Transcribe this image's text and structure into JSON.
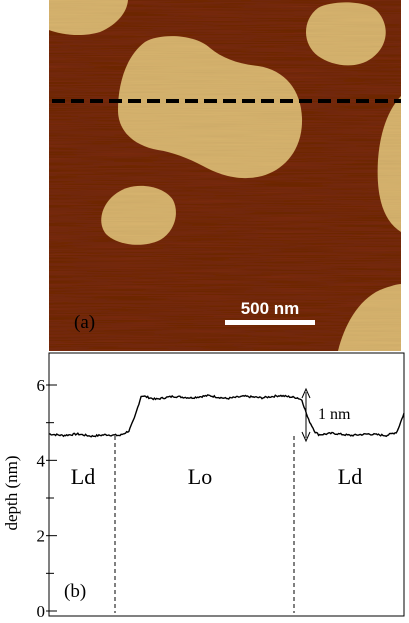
{
  "panel_a": {
    "label": "(a)",
    "scale_bar_label": "500 nm",
    "colors": {
      "background": "#7e2d07",
      "domain": "#d9b56f",
      "dashed_line": "#000000",
      "scale_bar": "#ffffff"
    }
  },
  "panel_b": {
    "label": "(b)",
    "step_annotation": "1 nm",
    "phase_labels": [
      "Ld",
      "Lo",
      "Ld"
    ]
  },
  "chart_data": {
    "type": "line",
    "ylabel": "depth (nm)",
    "ylim": [
      0,
      7
    ],
    "yticks": [
      0,
      2,
      4,
      6
    ],
    "y_minor_ticks": [
      1,
      3,
      5
    ],
    "grid": false,
    "series": [
      {
        "x": [
          0.0,
          0.04,
          0.08,
          0.12,
          0.16,
          0.2,
          0.225,
          0.24,
          0.26,
          0.3,
          0.35,
          0.4,
          0.45,
          0.5,
          0.55,
          0.6,
          0.65,
          0.7,
          0.7125,
          0.73,
          0.75,
          0.76,
          0.8,
          0.85,
          0.9,
          0.95,
          0.98,
          1.0
        ],
        "values": [
          4.7,
          4.66,
          4.7,
          4.64,
          4.68,
          4.66,
          4.78,
          5.1,
          5.72,
          5.62,
          5.7,
          5.66,
          5.72,
          5.64,
          5.7,
          5.66,
          5.72,
          5.66,
          5.6,
          5.1,
          4.75,
          4.68,
          4.72,
          4.66,
          4.7,
          4.66,
          4.75,
          5.25
        ]
      }
    ]
  }
}
